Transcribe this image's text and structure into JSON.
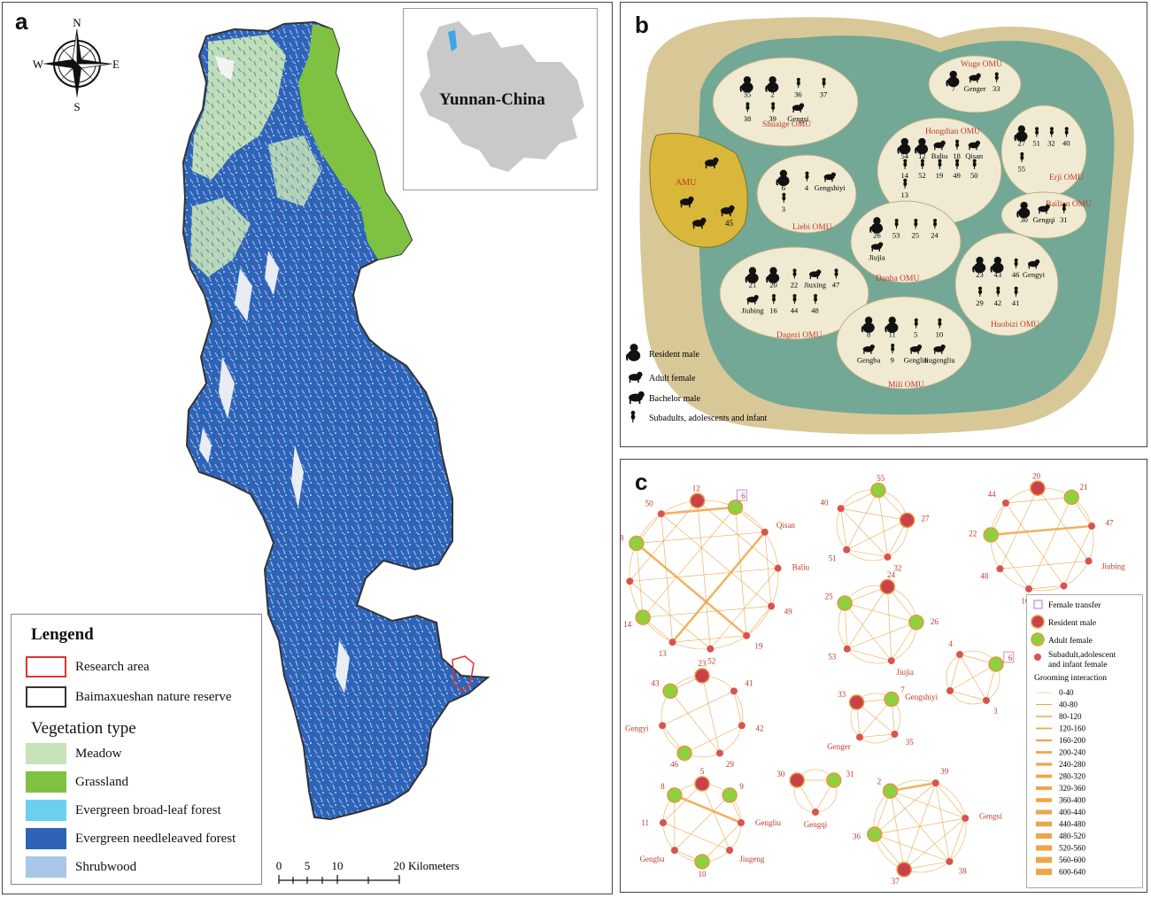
{
  "panel_a": {
    "label": "a",
    "compass": {
      "n": "N",
      "s": "S",
      "e": "E",
      "w": "W"
    },
    "inset_label": "Yunnan-China",
    "legend": {
      "title": "Lengend",
      "items": [
        {
          "label": "Research area"
        },
        {
          "label": "Baimaxueshan nature reserve"
        }
      ],
      "veg_title": "Vegetation type",
      "veg_items": [
        {
          "label": "Meadow",
          "color": "#c7e3b7"
        },
        {
          "label": "Grassland",
          "color": "#7fc241"
        },
        {
          "label": "Evergreen broad-leaf forest",
          "color": "#6ad0ec"
        },
        {
          "label": "Evergreen needleleaved forest",
          "color": "#2e63b8"
        },
        {
          "label": "Shrubwood",
          "color": "#a9c5e8"
        }
      ]
    },
    "scale": {
      "t0": "0",
      "t1": "5",
      "t2": "10",
      "t3": "20",
      "unit": "Kilometers"
    }
  },
  "panel_b": {
    "label": "b",
    "amu": {
      "name": "AMU",
      "ids": [
        "45"
      ]
    },
    "omus": [
      {
        "name": "Shuaige OMU",
        "ids": [
          "35",
          "2",
          "36",
          "37",
          "38",
          "39",
          "Gengsi"
        ]
      },
      {
        "name": "Wuge OMU",
        "ids": [
          "7",
          "Genger",
          "33"
        ]
      },
      {
        "name": "Hongdian OMU",
        "ids": [
          "54",
          "12",
          "Baliu",
          "18",
          "Qisan",
          "14",
          "52",
          "19",
          "49",
          "50",
          "13"
        ]
      },
      {
        "name": "Erji OMU",
        "ids": [
          "27",
          "51",
          "32",
          "40",
          "55"
        ]
      },
      {
        "name": "Liebi OMU",
        "ids": [
          "6",
          "4",
          "Gengshiyi",
          "3"
        ]
      },
      {
        "name": "Bailian OMU",
        "ids": [
          "30",
          "Gengqi",
          "31"
        ]
      },
      {
        "name": "Danba OMU",
        "ids": [
          "26",
          "53",
          "25",
          "24",
          "Jiujia"
        ]
      },
      {
        "name": "Dagezi OMU",
        "ids": [
          "21",
          "20",
          "22",
          "Jiuxing",
          "47",
          "Jiubing",
          "16",
          "44",
          "48"
        ]
      },
      {
        "name": "Huobizi OMU",
        "ids": [
          "23",
          "43",
          "46",
          "Gengyi",
          "29",
          "42",
          "41"
        ]
      },
      {
        "name": "Mili OMU",
        "ids": [
          "8",
          "11",
          "5",
          "10",
          "Gengba",
          "9",
          "Gengliu",
          "Jiugengliu"
        ]
      }
    ],
    "legend": [
      {
        "label": "Resident male"
      },
      {
        "label": "Adult female"
      },
      {
        "label": "Bachelor male"
      },
      {
        "label": "Subadults, adolescents and infant"
      }
    ]
  },
  "panel_c": {
    "label": "c",
    "legend": {
      "items": [
        "Female transfer",
        "Resident male",
        "Adult  female",
        "Subadult,adolescent\nand infant  female"
      ],
      "grooming_title": "Grooming interaction",
      "ranges": [
        "0-40",
        "40-80",
        "80-120",
        "120-160",
        "160-200",
        "200-240",
        "240-280",
        "280-320",
        "320-360",
        "360-400",
        "400-440",
        "440-480",
        "480-520",
        "520-560",
        "560-600",
        "600-640"
      ]
    },
    "colors": {
      "male": "#c9414b",
      "female": "#8ed040",
      "small": "#d9534f",
      "edge": "#eea64a"
    }
  }
}
